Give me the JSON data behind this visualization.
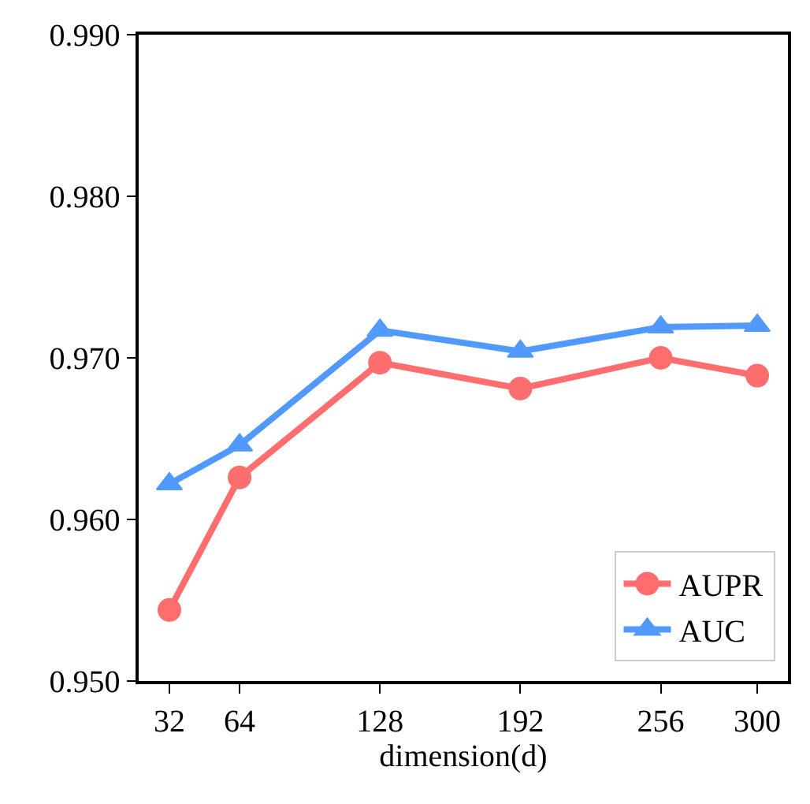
{
  "chart_data": {
    "type": "line",
    "xlabel": "dimension(d)",
    "x": [
      32,
      64,
      128,
      192,
      256,
      300
    ],
    "series": [
      {
        "name": "AUPR",
        "color": "#ff5555",
        "marker": "circle",
        "values": [
          0.9544,
          0.9626,
          0.9697,
          0.9681,
          0.97,
          0.9689
        ]
      },
      {
        "name": "AUC",
        "color": "#3388ff",
        "marker": "triangle",
        "values": [
          0.9622,
          0.9646,
          0.9717,
          0.9704,
          0.9719,
          0.972
        ]
      }
    ],
    "xlim": [
      18,
      314
    ],
    "xticks": [
      32,
      64,
      128,
      192,
      256,
      300
    ],
    "ylim": [
      0.95,
      0.99
    ],
    "yticks": [
      {
        "value": 0.95,
        "label": "0.950"
      },
      {
        "value": 0.96,
        "label": "0.960"
      },
      {
        "value": 0.97,
        "label": "0.970"
      },
      {
        "value": 0.98,
        "label": "0.980"
      },
      {
        "value": 0.99,
        "label": "0.990"
      }
    ],
    "legend": "bottom right",
    "line_style": "solid"
  }
}
